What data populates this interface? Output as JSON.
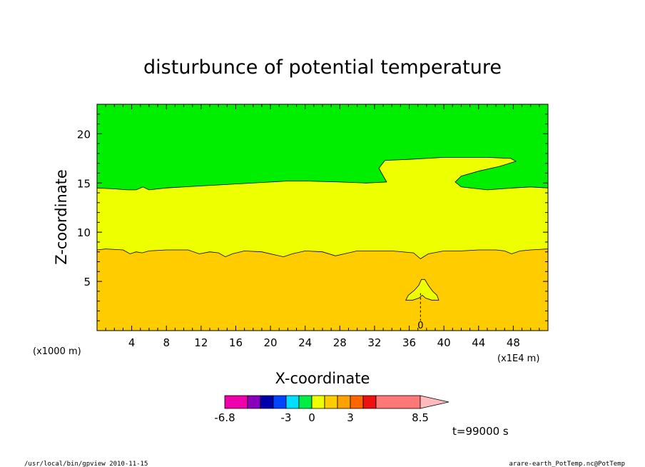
{
  "chart_data": {
    "type": "heatmap",
    "title": "disturbunce of potential temperature",
    "xlabel": "X-coordinate",
    "ylabel": "Z-coordinate",
    "x_unit_note": "(x1E4 m)",
    "y_unit_note": "(x1000 m)",
    "xlim": [
      0,
      52
    ],
    "ylim": [
      0,
      23
    ],
    "x_ticks": [
      4,
      8,
      12,
      16,
      20,
      24,
      28,
      32,
      36,
      40,
      44,
      48
    ],
    "y_ticks": [
      5,
      10,
      15,
      20
    ],
    "time_label": "t=99000 s",
    "regions": [
      {
        "name": "lower",
        "color": "#ffcc00"
      },
      {
        "name": "middle",
        "color": "#eeff00"
      },
      {
        "name": "upper",
        "color": "#00ee00"
      }
    ],
    "lower_boundary": [
      [
        0,
        8.2
      ],
      [
        1,
        8.3
      ],
      [
        3,
        8.2
      ],
      [
        3.8,
        7.8
      ],
      [
        4.5,
        8.0
      ],
      [
        5.2,
        7.9
      ],
      [
        6,
        8.1
      ],
      [
        8,
        8.2
      ],
      [
        10.5,
        8.2
      ],
      [
        11.8,
        7.8
      ],
      [
        13,
        8.0
      ],
      [
        14,
        7.9
      ],
      [
        14.8,
        7.5
      ],
      [
        15.6,
        7.8
      ],
      [
        17,
        8.1
      ],
      [
        19,
        8.0
      ],
      [
        20.5,
        7.7
      ],
      [
        21.5,
        7.5
      ],
      [
        22.5,
        7.8
      ],
      [
        24,
        8.1
      ],
      [
        26,
        8.0
      ],
      [
        27.5,
        7.6
      ],
      [
        28.5,
        7.8
      ],
      [
        30,
        8.1
      ],
      [
        32,
        8.1
      ],
      [
        34,
        8.1
      ],
      [
        36.5,
        7.9
      ],
      [
        37.3,
        7.3
      ],
      [
        38.2,
        7.8
      ],
      [
        40,
        8.1
      ],
      [
        42,
        8.1
      ],
      [
        44,
        8.2
      ],
      [
        46,
        8.2
      ],
      [
        47,
        8.1
      ],
      [
        47.8,
        7.8
      ],
      [
        48.8,
        8.1
      ],
      [
        50,
        8.2
      ],
      [
        52,
        8.3
      ]
    ],
    "upper_boundary": [
      [
        0,
        14.5
      ],
      [
        2,
        14.4
      ],
      [
        3.5,
        14.3
      ],
      [
        4.5,
        14.3
      ],
      [
        5.3,
        14.6
      ],
      [
        6,
        14.3
      ],
      [
        8,
        14.5
      ],
      [
        12,
        14.7
      ],
      [
        16,
        14.9
      ],
      [
        20,
        15.1
      ],
      [
        22,
        15.2
      ],
      [
        24,
        15.2
      ],
      [
        28,
        15.1
      ],
      [
        31,
        15.0
      ],
      [
        33.4,
        15.1
      ],
      [
        32.5,
        16.5
      ],
      [
        33.2,
        17.3
      ],
      [
        36,
        17.4
      ],
      [
        40,
        17.6
      ],
      [
        45,
        17.6
      ],
      [
        47.7,
        17.5
      ],
      [
        48.3,
        17.2
      ],
      [
        46.5,
        16.7
      ],
      [
        44,
        16.2
      ],
      [
        42,
        15.7
      ],
      [
        41.3,
        15.1
      ],
      [
        42,
        14.6
      ],
      [
        45,
        14.3
      ],
      [
        48,
        14.5
      ],
      [
        50,
        14.6
      ],
      [
        52,
        14.5
      ]
    ],
    "small_contours": [
      {
        "color": "#eeff00",
        "points": [
          [
            37.8,
            5.2
          ],
          [
            38.2,
            4.6
          ],
          [
            38.7,
            4.0
          ],
          [
            39.2,
            3.6
          ],
          [
            39.4,
            3.1
          ],
          [
            38.6,
            3.1
          ],
          [
            37.9,
            3.3
          ],
          [
            37.5,
            3.6
          ],
          [
            37.1,
            3.3
          ],
          [
            36.4,
            3.1
          ],
          [
            35.6,
            3.1
          ],
          [
            35.9,
            3.6
          ],
          [
            36.6,
            4.1
          ],
          [
            37.1,
            4.6
          ],
          [
            37.4,
            5.2
          ]
        ]
      }
    ],
    "dashed_contour": {
      "label": "0",
      "x": 37.3,
      "y_range": [
        0.5,
        3.8
      ]
    },
    "colorbar": {
      "colors": [
        "#ee00aa",
        "#8800bb",
        "#0000aa",
        "#0044ff",
        "#00ddff",
        "#00ee44",
        "#eeff00",
        "#ffcc00",
        "#ffa200",
        "#ff6600",
        "#ee1111",
        "#ff7777"
      ],
      "tick_labels": [
        "-6.8",
        "-3",
        "0",
        "3",
        "8.5"
      ],
      "arrow_color": "#ffbbbb"
    }
  },
  "footer": {
    "left": "/usr/local/bin/gpview   2010-11-15",
    "right": "arare-earth_PotTemp.nc@PotTemp"
  }
}
